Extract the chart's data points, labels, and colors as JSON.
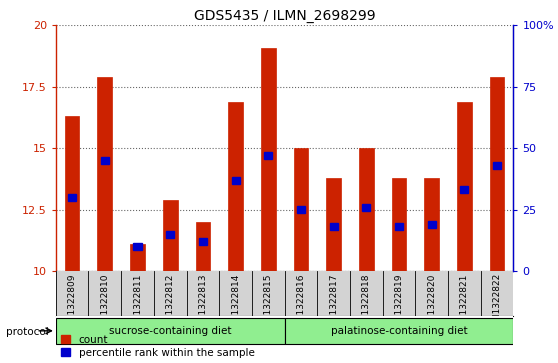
{
  "title": "GDS5435 / ILMN_2698299",
  "samples": [
    "GSM1322809",
    "GSM1322810",
    "GSM1322811",
    "GSM1322812",
    "GSM1322813",
    "GSM1322814",
    "GSM1322815",
    "GSM1322816",
    "GSM1322817",
    "GSM1322818",
    "GSM1322819",
    "GSM1322820",
    "GSM1322821",
    "GSM1322822"
  ],
  "counts": [
    16.3,
    17.9,
    11.1,
    12.9,
    12.0,
    16.9,
    19.1,
    15.0,
    13.8,
    15.0,
    13.8,
    13.8,
    16.9,
    17.9
  ],
  "percentiles": [
    30,
    45,
    10,
    15,
    12,
    37,
    47,
    25,
    18,
    26,
    18,
    19,
    33,
    43
  ],
  "bar_color": "#cc2200",
  "marker_color": "#0000cc",
  "ylim_left": [
    10,
    20
  ],
  "ylim_right": [
    0,
    100
  ],
  "yticks_left": [
    10,
    12.5,
    15,
    17.5,
    20
  ],
  "yticks_right": [
    0,
    25,
    50,
    75,
    100
  ],
  "ytick_labels_right": [
    "0",
    "25",
    "50",
    "75",
    "100%"
  ],
  "group1_label": "sucrose-containing diet",
  "group2_label": "palatinose-containing diet",
  "group1_count": 7,
  "group2_count": 7,
  "protocol_label": "protocol",
  "legend_count_label": "count",
  "legend_percentile_label": "percentile rank within the sample",
  "background_color": "#ffffff",
  "plot_bg": "#ffffff",
  "group_bg": "#90ee90",
  "sample_bg": "#d3d3d3",
  "bar_width": 0.45,
  "bar_bottom": 10
}
